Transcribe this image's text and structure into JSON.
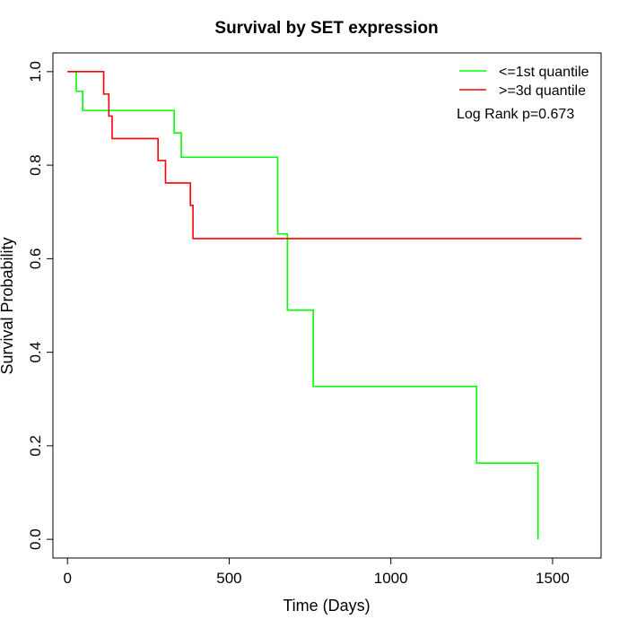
{
  "chart_data": {
    "type": "line",
    "title": "Survival by SET expression",
    "xlabel": "Time (Days)",
    "ylabel": "Survival Probability",
    "xlim": [
      -45,
      1650
    ],
    "ylim": [
      -0.04,
      1.04
    ],
    "xticks": [
      0,
      500,
      1000,
      1500
    ],
    "yticks": [
      0.0,
      0.2,
      0.4,
      0.6,
      0.8,
      1.0
    ],
    "xtick_labels": [
      "0",
      "500",
      "1000",
      "1500"
    ],
    "ytick_labels": [
      "0.0",
      "0.2",
      "0.4",
      "0.6",
      "0.8",
      "1.0"
    ],
    "grid": false,
    "legend_position": "top-right",
    "annotation": "Log Rank p=0.673",
    "series": [
      {
        "name": "<=1st quantile",
        "color": "#00ff00",
        "steps": [
          [
            0,
            1.0
          ],
          [
            27,
            0.958
          ],
          [
            47,
            0.917
          ],
          [
            330,
            0.869
          ],
          [
            352,
            0.817
          ],
          [
            650,
            0.653
          ],
          [
            680,
            0.49
          ],
          [
            760,
            0.327
          ],
          [
            1265,
            0.163
          ],
          [
            1455,
            0.0
          ]
        ]
      },
      {
        "name": ">=3d quantile",
        "color": "#ff0000",
        "steps": [
          [
            0,
            1.0
          ],
          [
            112,
            0.952
          ],
          [
            128,
            0.905
          ],
          [
            138,
            0.857
          ],
          [
            280,
            0.81
          ],
          [
            303,
            0.762
          ],
          [
            380,
            0.714
          ],
          [
            388,
            0.643
          ]
        ],
        "end_x": 1590
      }
    ]
  }
}
